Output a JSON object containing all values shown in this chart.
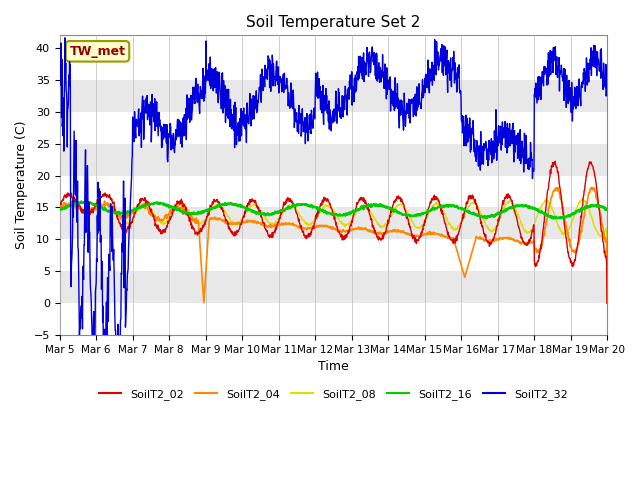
{
  "title": "Soil Temperature Set 2",
  "xlabel": "Time",
  "ylabel": "Soil Temperature (C)",
  "ylim": [
    -5,
    42
  ],
  "y_ticks": [
    -5,
    0,
    5,
    10,
    15,
    20,
    25,
    30,
    35,
    40
  ],
  "annotation": "TW_met",
  "series_colors": {
    "SoilT2_02": "#dd0000",
    "SoilT2_04": "#ff8800",
    "SoilT2_08": "#dddd00",
    "SoilT2_16": "#00cc00",
    "SoilT2_32": "#0000dd"
  },
  "x_tick_labels": [
    "Mar 5",
    "Mar 6",
    "Mar 7",
    "Mar 8",
    "Mar 9",
    "Mar 10",
    "Mar 11",
    "Mar 12",
    "Mar 13",
    "Mar 14",
    "Mar 15",
    "Mar 16",
    "Mar 17",
    "Mar 18",
    "Mar 19",
    "Mar 20"
  ],
  "band_colors": [
    "#ffffff",
    "#e8e8e8"
  ],
  "legend_labels": [
    "SoilT2_02",
    "SoilT2_04",
    "SoilT2_08",
    "SoilT2_16",
    "SoilT2_32"
  ]
}
